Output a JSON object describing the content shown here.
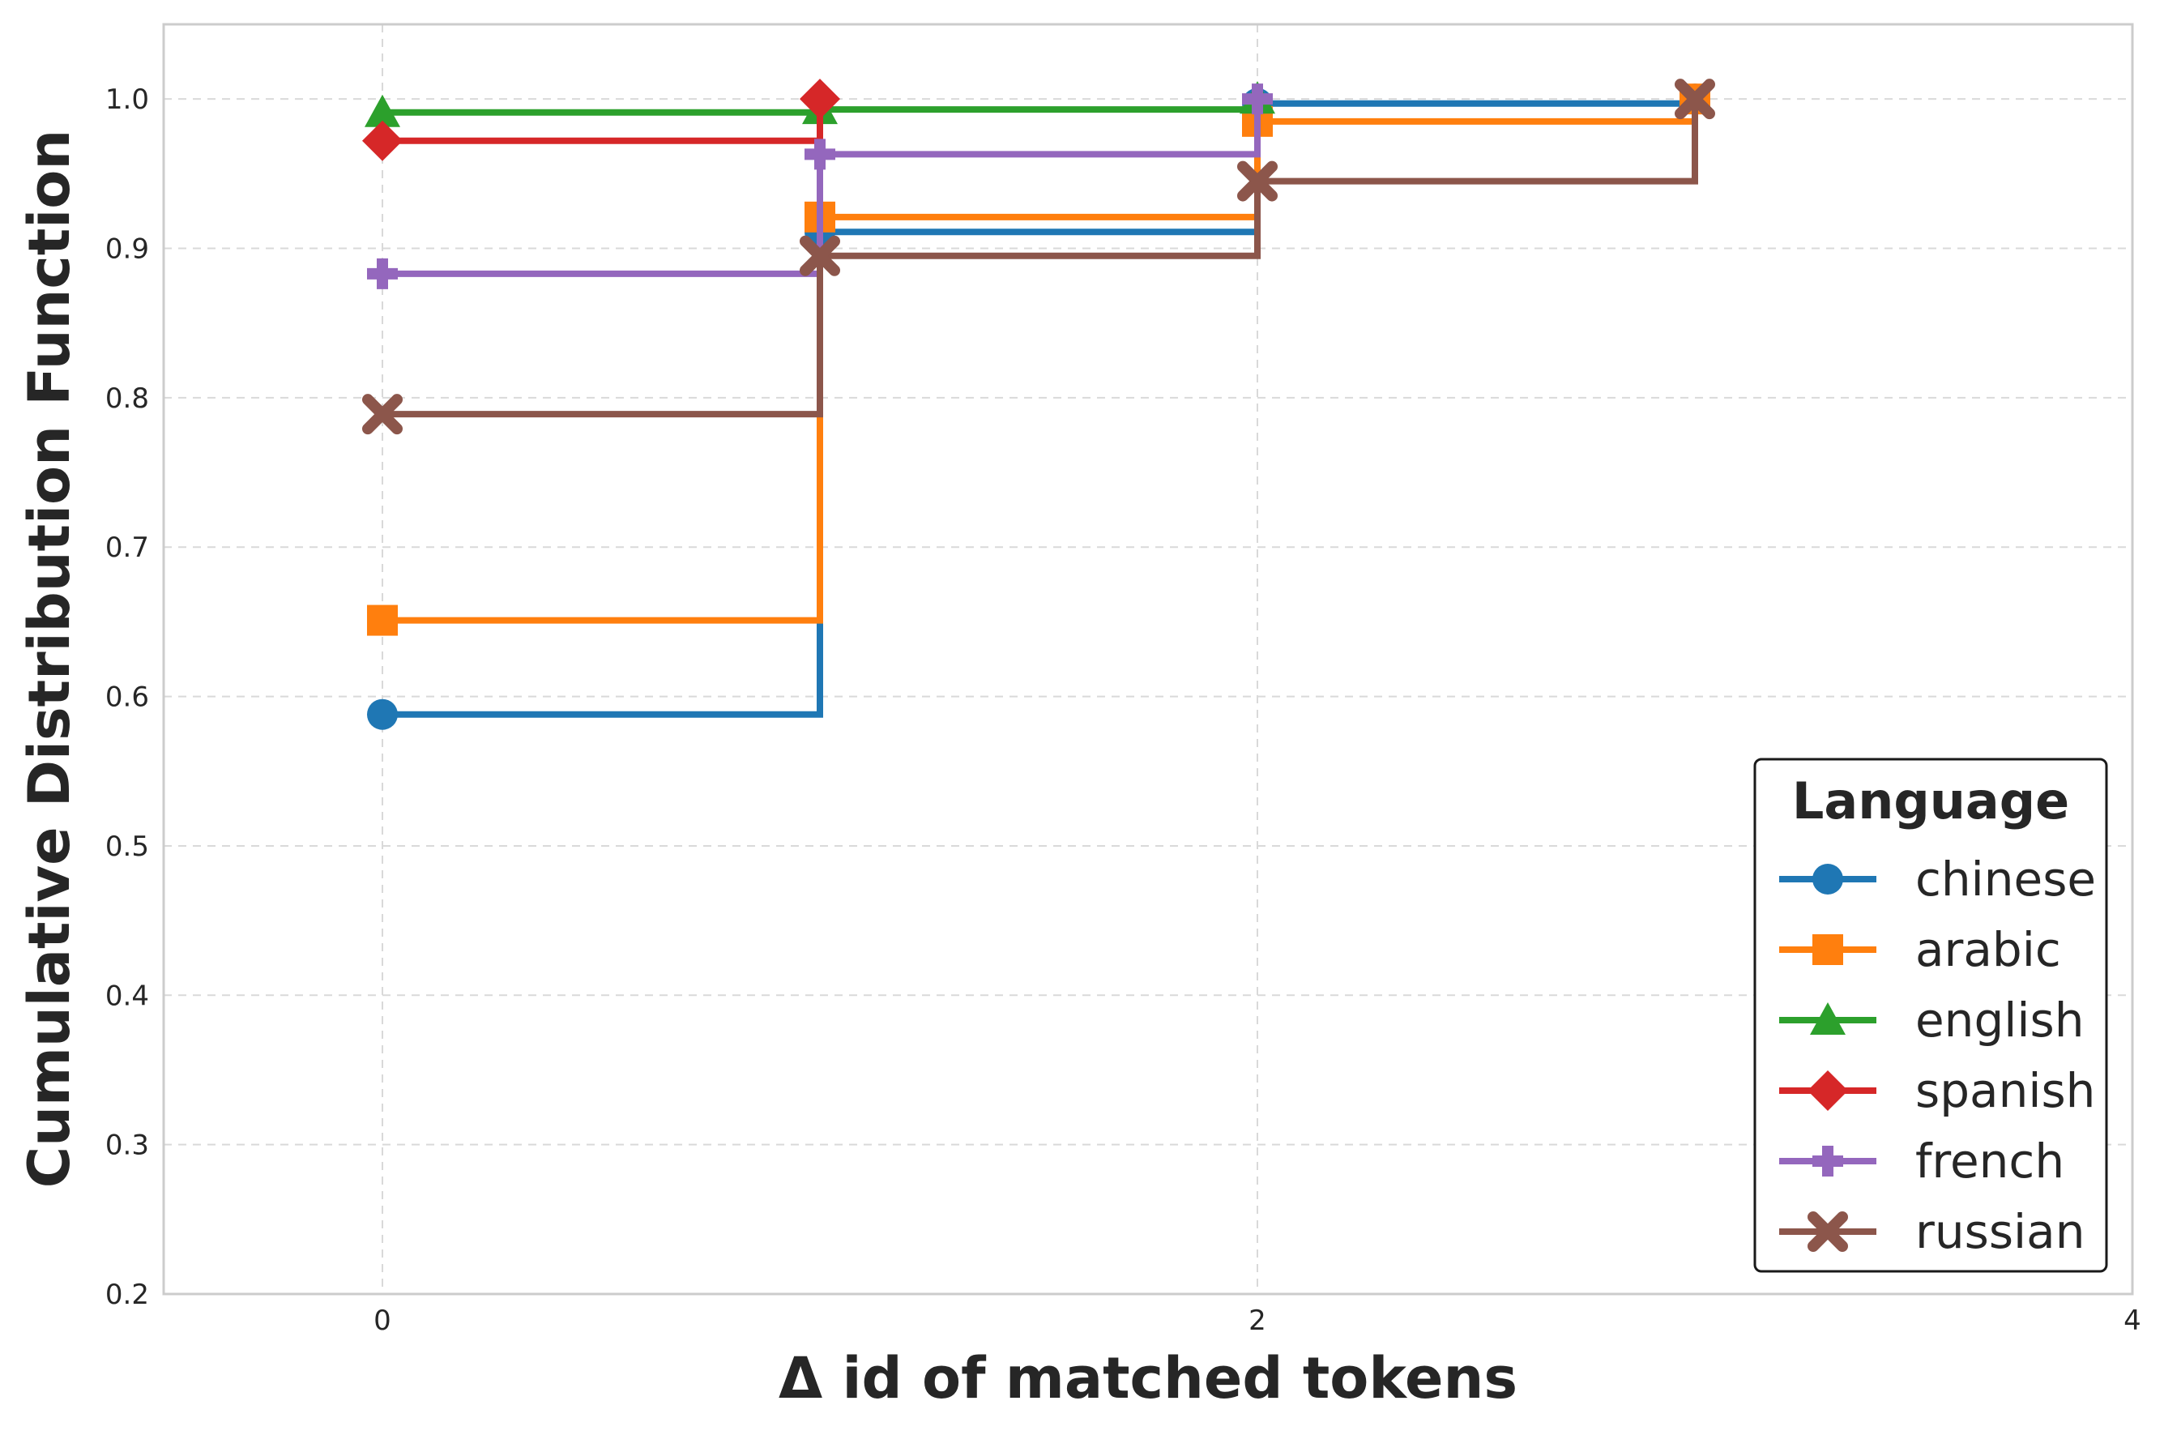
{
  "chart_data": {
    "type": "line",
    "step": true,
    "xlabel": "Δ id of matched tokens",
    "ylabel": "Cumulative Distribution Function",
    "xlim": [
      -0.5,
      4
    ],
    "ylim": [
      0.2,
      1.05
    ],
    "xticks": [
      0,
      2,
      4
    ],
    "yticks": [
      0.2,
      0.3,
      0.4,
      0.5,
      0.6,
      0.7,
      0.8,
      0.9,
      1.0
    ],
    "xtick_labels": [
      "0",
      "2",
      "4"
    ],
    "ytick_labels": [
      "0.2",
      "0.3",
      "0.4",
      "0.5",
      "0.6",
      "0.7",
      "0.8",
      "0.9",
      "1.0"
    ],
    "grid": true,
    "legend": {
      "title": "Language",
      "placement": "lower-right"
    },
    "series": [
      {
        "name": "chinese",
        "color": "#1f77b4",
        "marker": "circle",
        "x": [
          0,
          1,
          2,
          3
        ],
        "y": [
          0.588,
          0.911,
          0.997,
          1.0
        ]
      },
      {
        "name": "arabic",
        "color": "#ff7f0e",
        "marker": "square",
        "x": [
          0,
          1,
          2,
          3
        ],
        "y": [
          0.651,
          0.921,
          0.985,
          1.0
        ]
      },
      {
        "name": "english",
        "color": "#2ca02c",
        "marker": "triangle",
        "x": [
          0,
          1,
          2
        ],
        "y": [
          0.991,
          0.993,
          1.0
        ]
      },
      {
        "name": "spanish",
        "color": "#d62728",
        "marker": "diamond",
        "x": [
          0,
          1
        ],
        "y": [
          0.972,
          1.0
        ]
      },
      {
        "name": "french",
        "color": "#9467bd",
        "marker": "plus",
        "x": [
          0,
          1,
          2
        ],
        "y": [
          0.883,
          0.963,
          1.0
        ]
      },
      {
        "name": "russian",
        "color": "#8c564b",
        "marker": "x",
        "x": [
          0,
          1,
          2,
          3
        ],
        "y": [
          0.789,
          0.895,
          0.945,
          1.0
        ]
      }
    ]
  }
}
